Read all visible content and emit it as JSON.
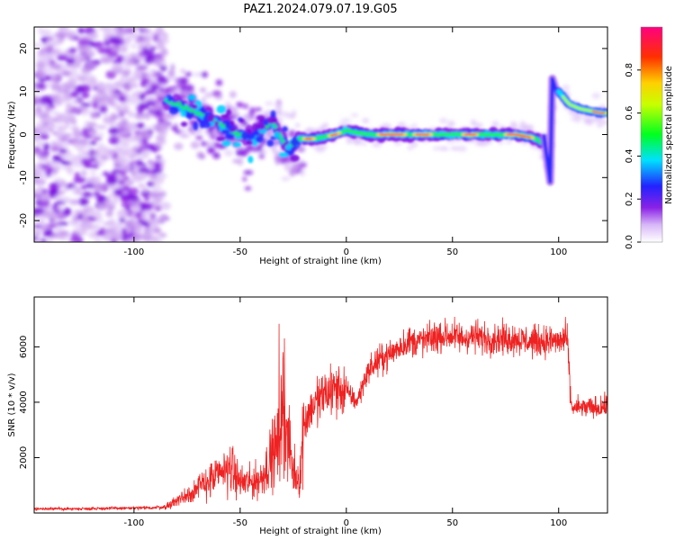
{
  "figure": {
    "title": "PAZ1.2024.079.07.19.G05"
  },
  "chart_data": [
    {
      "type": "heatmap",
      "xlabel": "Height of straight line (km)",
      "ylabel": "Frequency (Hz)",
      "xlim": [
        -147,
        123
      ],
      "ylim": [
        -25,
        25
      ],
      "xticks": [
        -100,
        -50,
        0,
        50,
        100
      ],
      "yticks": [
        -20,
        -10,
        0,
        10,
        20
      ],
      "colorbar": {
        "label": "Normalized spectral amplitude",
        "range": [
          0,
          1
        ],
        "ticks": [
          0.0,
          0.2,
          0.4,
          0.6,
          0.8
        ]
      },
      "ridge": {
        "x": [
          -85,
          -75,
          -65,
          -55,
          -45,
          -35,
          -28,
          -22,
          -15,
          -5,
          0,
          10,
          20,
          30,
          40,
          50,
          60,
          70,
          80,
          90,
          94,
          96,
          98,
          100,
          105,
          110,
          120,
          123
        ],
        "y": [
          8,
          6,
          4,
          1,
          -1,
          3,
          -3,
          -1,
          -1,
          0,
          1,
          0,
          0,
          0,
          0,
          0,
          0,
          0,
          0,
          -1,
          -3,
          -10,
          12,
          10,
          7,
          6,
          5,
          5
        ]
      }
    },
    {
      "type": "line",
      "xlabel": "Height of straight line (km)",
      "ylabel": "SNR (10 * v/v)",
      "xlim": [
        -147,
        123
      ],
      "ylim": [
        0,
        7800
      ],
      "xticks": [
        -100,
        -50,
        0,
        50,
        100
      ],
      "yticks": [
        2000,
        4000,
        6000
      ],
      "color": "#ee2222",
      "series": [
        {
          "x": [
            -147,
            -130,
            -110,
            -95,
            -85,
            -80,
            -75,
            -70,
            -65,
            -60,
            -55,
            -50,
            -45,
            -40,
            -35,
            -32,
            -30,
            -28,
            -25,
            -22,
            -20,
            -18,
            -15,
            -10,
            -5,
            0,
            5,
            10,
            15,
            20,
            25,
            30,
            35,
            40,
            45,
            50,
            55,
            60,
            65,
            70,
            75,
            80,
            85,
            90,
            95,
            100,
            104,
            106,
            110,
            115,
            120,
            123
          ],
          "y": [
            150,
            150,
            170,
            180,
            220,
            450,
            650,
            900,
            1150,
            1350,
            1700,
            1100,
            1100,
            1250,
            2100,
            2500,
            3800,
            2800,
            1500,
            1200,
            3200,
            3600,
            3900,
            4300,
            4500,
            4400,
            4000,
            5100,
            5500,
            5700,
            6000,
            6200,
            6200,
            6300,
            6400,
            6400,
            6300,
            6400,
            6300,
            6300,
            6300,
            6300,
            6200,
            6200,
            6200,
            6200,
            6300,
            3800,
            3800,
            3800,
            3800,
            3900
          ]
        }
      ]
    }
  ]
}
